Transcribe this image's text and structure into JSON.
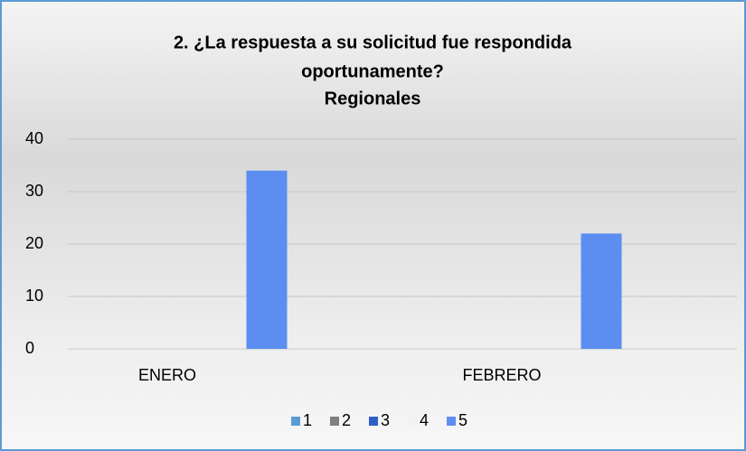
{
  "chart_data": {
    "type": "bar",
    "title": [
      "2. ¿La respuesta a su solicitud fue respondida",
      "oportunamente?",
      "Regionales"
    ],
    "categories": [
      "ENERO",
      "FEBRERO"
    ],
    "series": [
      {
        "name": "1",
        "color": "#5b9bd5",
        "values": [
          0,
          0
        ]
      },
      {
        "name": "2",
        "color": "#7f7f7f",
        "values": [
          0,
          0
        ]
      },
      {
        "name": "3",
        "color": "#2f5fc4",
        "values": [
          0,
          0
        ]
      },
      {
        "name": "4",
        "color": "#f2f2f2",
        "values": [
          0,
          0
        ]
      },
      {
        "name": "5",
        "color": "#5b8ef0",
        "values": [
          34,
          22
        ]
      }
    ],
    "ylim": [
      0,
      40
    ],
    "yticks": [
      0,
      10,
      20,
      30,
      40
    ],
    "grid": true,
    "legend": "bottom"
  }
}
